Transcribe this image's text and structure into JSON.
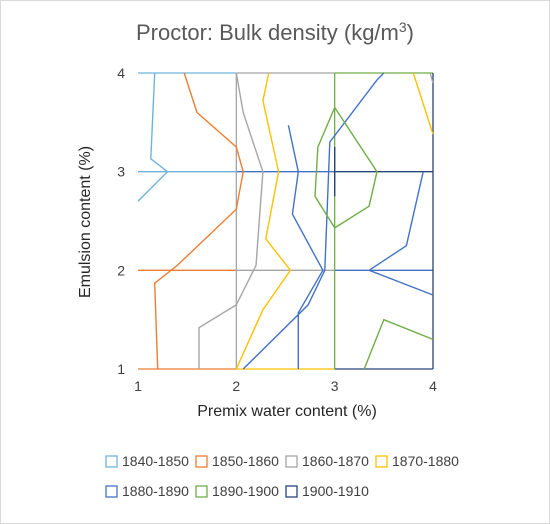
{
  "chart_data": {
    "type": "contour",
    "title": "Proctor: Bulk density (kg/m",
    "title_superscript": "3",
    "title_suffix": ")",
    "xlabel": "Premix water content (%)",
    "ylabel": "Emulsion content (%)",
    "xlim": [
      1,
      4
    ],
    "ylim": [
      1,
      4
    ],
    "xticks": [
      "1",
      "2",
      "3",
      "4"
    ],
    "yticks": [
      "1",
      "2",
      "3",
      "4"
    ],
    "grid": false,
    "legend_position": "bottom",
    "series": [
      {
        "name": "1840-1850",
        "color": "#6fb3dc",
        "lines": [
          [
            [
              1.17,
              4
            ],
            [
              1.13,
              3.13
            ],
            [
              1.3,
              3
            ],
            [
              1,
              2.7
            ]
          ]
        ]
      },
      {
        "name": "1850-1860",
        "color": "#ed7d31",
        "lines": [
          [
            [
              1.47,
              4
            ],
            [
              1.6,
              3.6
            ],
            [
              2,
              3.25
            ],
            [
              2.07,
              3
            ],
            [
              2,
              2.62
            ],
            [
              1.4,
              2.05
            ],
            [
              1.17,
              1.87
            ],
            [
              1.2,
              1
            ]
          ]
        ]
      },
      {
        "name": "1860-1870",
        "color": "#a5a5a5",
        "lines": [
          [
            [
              2,
              4
            ],
            [
              2.07,
              3.6
            ],
            [
              2.27,
              3
            ],
            [
              2.2,
              2.05
            ],
            [
              2,
              1.65
            ],
            [
              1.62,
              1.42
            ],
            [
              1.62,
              1
            ]
          ],
          [
            [
              3.97,
              4
            ],
            [
              4,
              3.9
            ]
          ]
        ]
      },
      {
        "name": "1870-1880",
        "color": "#ffc000",
        "lines": [
          [
            [
              2.33,
              4
            ],
            [
              2.27,
              3.72
            ],
            [
              2.43,
              3
            ],
            [
              2.3,
              2.32
            ],
            [
              2.55,
              2
            ],
            [
              2.27,
              1.6
            ],
            [
              2,
              1
            ]
          ],
          [
            [
              3.8,
              4
            ],
            [
              4,
              3.38
            ]
          ]
        ]
      },
      {
        "name": "1880-1890",
        "color": "#4472c4",
        "lines": [
          [
            [
              2.53,
              3.47
            ],
            [
              2.63,
              3
            ],
            [
              2.57,
              2.57
            ],
            [
              2.88,
              2
            ],
            [
              2.63,
              1.57
            ],
            [
              2.63,
              1
            ]
          ],
          [
            [
              3.9,
              3
            ],
            [
              3.73,
              2.25
            ],
            [
              3.35,
              2
            ],
            [
              4,
              1.75
            ]
          ],
          [
            [
              2.07,
              1
            ],
            [
              2.73,
              1.65
            ],
            [
              2.9,
              2
            ],
            [
              2.95,
              3.3
            ],
            [
              3.43,
              3.93
            ],
            [
              3.5,
              4
            ]
          ]
        ]
      },
      {
        "name": "1890-1900",
        "color": "#70ad47",
        "lines": [
          [
            [
              3,
              3.65
            ],
            [
              3.43,
              3
            ],
            [
              3.35,
              2.65
            ],
            [
              3,
              2.43
            ],
            [
              2.8,
              2.75
            ],
            [
              2.83,
              3.25
            ],
            [
              3,
              3.65
            ]
          ],
          [
            [
              3.3,
              1
            ],
            [
              3.5,
              1.5
            ],
            [
              4,
              1.3
            ]
          ]
        ]
      },
      {
        "name": "1900-1910",
        "color": "#264478",
        "lines": [
          [
            [
              3,
              3.25
            ],
            [
              3,
              2.75
            ]
          ]
        ]
      }
    ]
  }
}
